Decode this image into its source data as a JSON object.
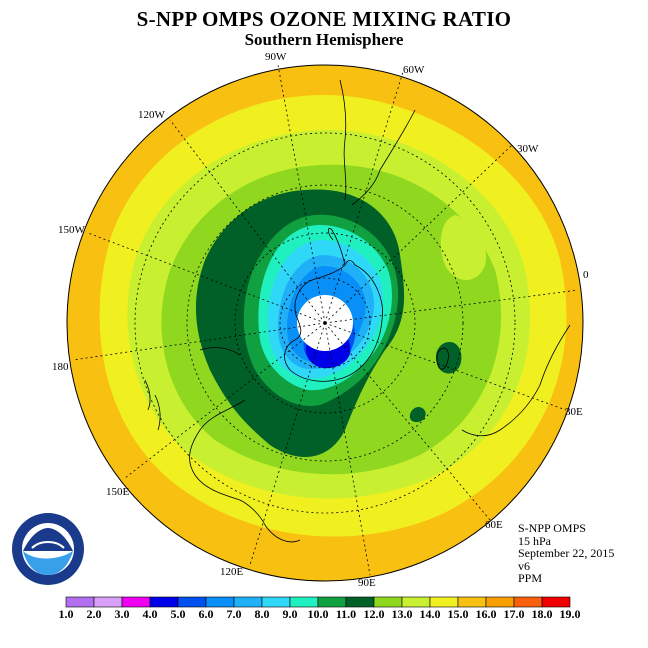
{
  "title": "S-NPP OMPS OZONE MIXING RATIO",
  "subtitle": "Southern Hemisphere",
  "info": {
    "instrument": "S-NPP OMPS",
    "level": "15 hPa",
    "date": "September 22, 2015",
    "version": "v6",
    "units": "PPM"
  },
  "longitude_labels": [
    "90W",
    "60W",
    "30W",
    "0",
    "30E",
    "60E",
    "90E",
    "120E",
    "150E",
    "180",
    "150W",
    "120W"
  ],
  "colorbar": {
    "ticks": [
      "1.0",
      "2.0",
      "3.0",
      "4.0",
      "5.0",
      "6.0",
      "7.0",
      "8.0",
      "9.0",
      "10.0",
      "11.0",
      "12.0",
      "13.0",
      "14.0",
      "15.0",
      "16.0",
      "17.0",
      "18.0",
      "19.0"
    ],
    "colors": [
      "#b070f0",
      "#d8a0f8",
      "#f000f0",
      "#0000e8",
      "#0050f0",
      "#0890f8",
      "#20b0f8",
      "#30d8f8",
      "#20f0c0",
      "#10a040",
      "#006028",
      "#90d820",
      "#c8f030",
      "#f0f020",
      "#f8c010",
      "#f8a000",
      "#f86010",
      "#f00000",
      "#906040"
    ]
  },
  "chart_data": {
    "type": "map",
    "projection": "polar stereographic, south pole",
    "field": "ozone mixing ratio",
    "units": "PPM",
    "pressure_level": "15 hPa",
    "date": "September 22, 2015",
    "range": [
      1.0,
      19.0
    ],
    "features": {
      "polar_minimum": "about 4-5 ppm over East Antarctica, near 90E-120E",
      "collar_maximum": "about 10-11 ppm ring around the vortex",
      "midlatitude_values": "12-14 ppm",
      "outer_edge": "15-16 ppm",
      "no_data_region": "white disk over the pole (polar night)"
    }
  }
}
